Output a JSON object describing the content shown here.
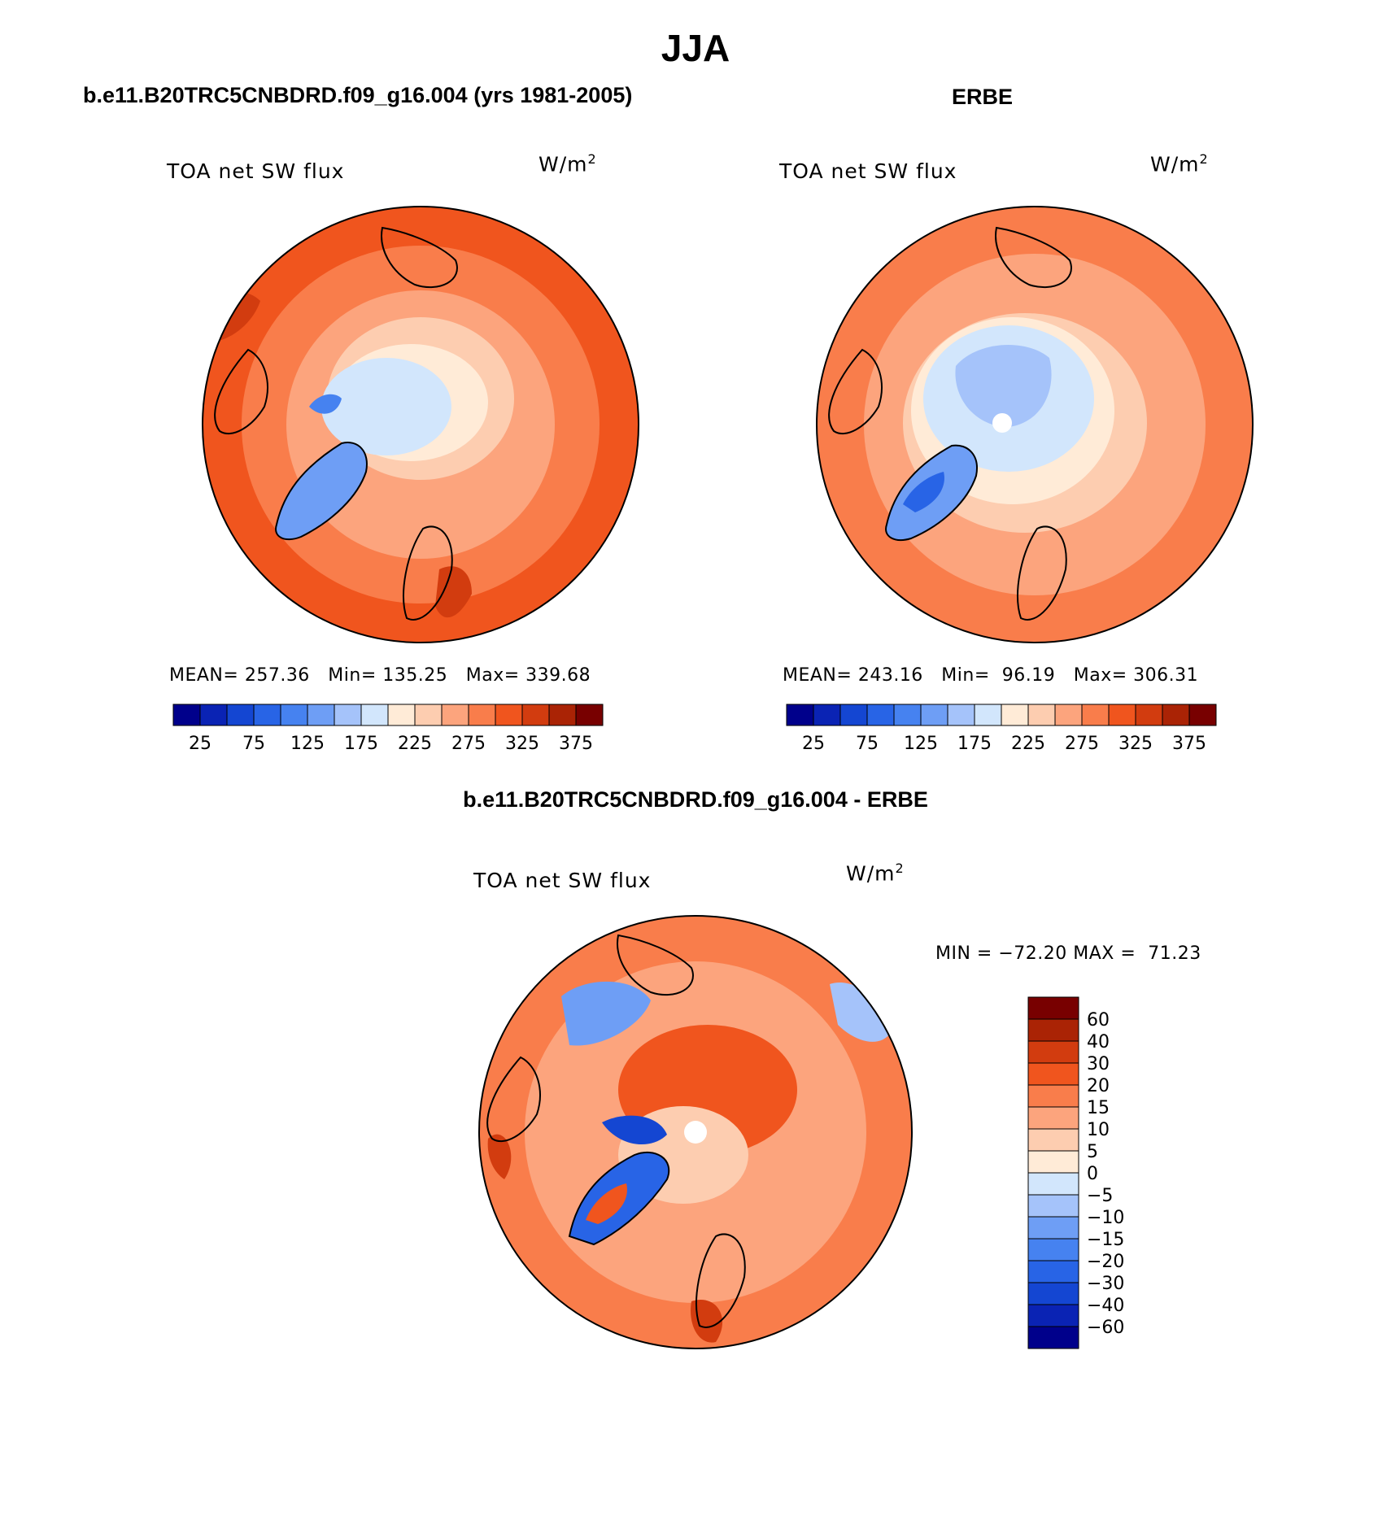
{
  "figure": {
    "season": "JJA",
    "left_title": "b.e11.B20TRC5CNBDRD.f09_g16.004 (yrs 1981-2005)",
    "right_title": "ERBE",
    "diff_title": "b.e11.B20TRC5CNBDRD.f09_g16.004 - ERBE"
  },
  "panels": [
    {
      "variable": "TOA net SW flux",
      "units": "W/m",
      "units_sup": "2",
      "stats": {
        "mean_label": "MEAN=",
        "mean": "257.36",
        "min_label": "Min=",
        "min": "135.25",
        "max_label": "Max=",
        "max": "339.68"
      },
      "fields": {
        "interior": 0.62,
        "ice_cap": 0.1,
        "greenland": 0.05,
        "land": 0.78,
        "ocean_edge": 0.88
      }
    },
    {
      "variable": "TOA net SW flux",
      "units": "W/m",
      "units_sup": "2",
      "stats": {
        "mean_label": "MEAN=",
        "mean": "243.16",
        "min_label": "Min=",
        "min": "96.19",
        "max_label": "Max=",
        "max": "306.31"
      },
      "fields": {
        "interior": 0.55,
        "ice_cap": 0.08,
        "greenland": 0.0,
        "land": 0.7,
        "ocean_edge": 0.8
      }
    }
  ],
  "diff_panel": {
    "variable": "TOA net SW flux",
    "units": "W/m",
    "units_sup": "2",
    "minmax_text": "MIN = −72.20 MAX =  71.23"
  },
  "colorbar_horizontal": {
    "labels": [
      "25",
      "75",
      "125",
      "175",
      "225",
      "275",
      "325",
      "375"
    ],
    "colors": [
      "#00008b",
      "#0a23b4",
      "#1446d2",
      "#2864e6",
      "#4682f0",
      "#6e9ef5",
      "#a5c3fa",
      "#d2e6fc",
      "#ffebd7",
      "#fdcdb0",
      "#fca47d",
      "#f97d4b",
      "#f0551e",
      "#d23c0f",
      "#aa2305",
      "#780000"
    ]
  },
  "colorbar_vertical": {
    "labels": [
      "60",
      "40",
      "30",
      "20",
      "15",
      "10",
      "5",
      "0",
      "−5",
      "−10",
      "−15",
      "−20",
      "−30",
      "−40",
      "−60"
    ],
    "colors": [
      "#780000",
      "#aa2305",
      "#d23c0f",
      "#f0551e",
      "#f97d4b",
      "#fca47d",
      "#fdcdb0",
      "#ffebd7",
      "#d2e6fc",
      "#a5c3fa",
      "#6e9ef5",
      "#4682f0",
      "#2864e6",
      "#1446d2",
      "#0a23b4",
      "#00008b"
    ]
  }
}
